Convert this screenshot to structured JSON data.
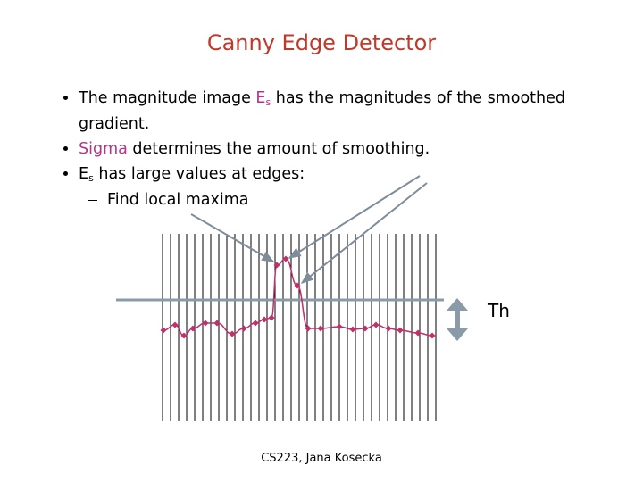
{
  "title": "Canny Edge Detector",
  "bullets": [
    [
      "The magnitude image ",
      "E",
      "s",
      " has the magnitudes of the smoothed gradient."
    ],
    [
      "Sigma",
      " determines the amount of smoothing."
    ],
    [
      "E",
      "s",
      " has large values at edges:"
    ]
  ],
  "sub_bullets": [
    "Find local maxima"
  ],
  "diagram": {
    "threshold_label": "Th"
  },
  "footer": "CS223, Jana Kosecka"
}
